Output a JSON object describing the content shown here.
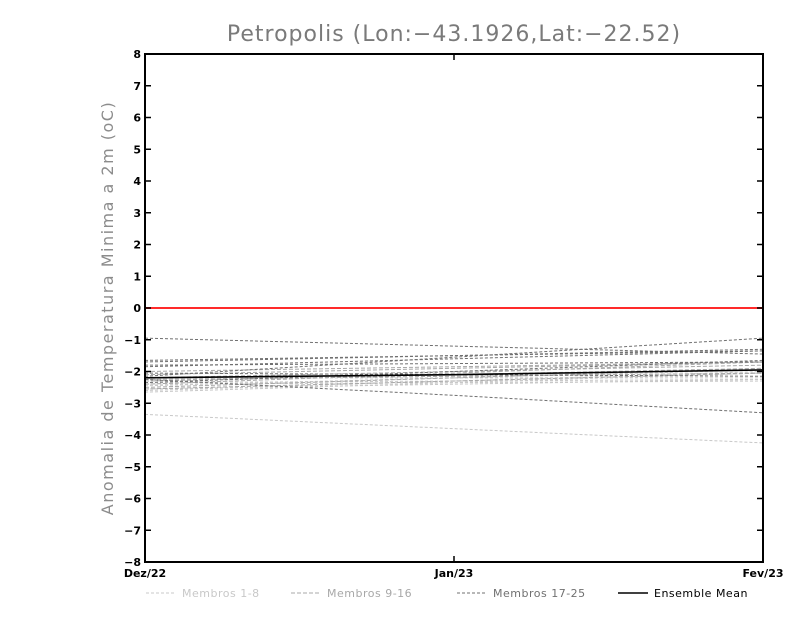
{
  "chart_data": {
    "type": "line",
    "title": "Petropolis (Lon:−43.1926,Lat:−22.52)",
    "ylabel": "Anomalia de Temperatura Minima a 2m (oC)",
    "xlabel": "",
    "categories": [
      "Dez/22",
      "Jan/23",
      "Fev/23"
    ],
    "ylim": [
      -8,
      8
    ],
    "yticks": [
      "8",
      "7",
      "6",
      "5",
      "4",
      "3",
      "2",
      "1",
      "0",
      "−1",
      "−2",
      "−3",
      "−4",
      "−5",
      "−6",
      "−7",
      "−8"
    ],
    "ytick_values": [
      8,
      7,
      6,
      5,
      4,
      3,
      2,
      1,
      0,
      -1,
      -2,
      -3,
      -4,
      -5,
      -6,
      -7,
      -8
    ],
    "reference_line": {
      "value": 0,
      "color": "#ff2a2a"
    },
    "groups": [
      {
        "name": "Membros 1-8",
        "color": "#c8c8c8",
        "dash": "3,2",
        "series": [
          {
            "values": [
              -3.35,
              -3.8,
              -4.25
            ]
          },
          {
            "values": [
              -2.55,
              -2.4,
              -2.25
            ]
          },
          {
            "values": [
              -2.35,
              -2.3,
              -2.25
            ]
          },
          {
            "values": [
              -2.6,
              -2.3,
              -2.0
            ]
          },
          {
            "values": [
              -2.45,
              -2.2,
              -1.95
            ]
          },
          {
            "values": [
              -2.65,
              -2.35,
              -2.05
            ]
          },
          {
            "values": [
              -2.4,
              -2.35,
              -2.3
            ]
          },
          {
            "values": [
              -2.2,
              -2.2,
              -2.2
            ]
          }
        ]
      },
      {
        "name": "Membros 9-16",
        "color": "#a8a8a8",
        "dash": "4,2",
        "series": [
          {
            "values": [
              -2.3,
              -2.1,
              -1.9
            ]
          },
          {
            "values": [
              -2.5,
              -2.2,
              -1.9
            ]
          },
          {
            "values": [
              -2.1,
              -1.9,
              -1.7
            ]
          },
          {
            "values": [
              -2.2,
              -2.0,
              -1.8
            ]
          },
          {
            "values": [
              -2.55,
              -2.3,
              -2.05
            ]
          },
          {
            "values": [
              -2.0,
              -1.85,
              -1.7
            ]
          },
          {
            "values": [
              -2.4,
              -2.05,
              -1.7
            ]
          },
          {
            "values": [
              -2.25,
              -2.15,
              -2.05
            ]
          }
        ]
      },
      {
        "name": "Membros 17-25",
        "color": "#707070",
        "dash": "3,2",
        "series": [
          {
            "values": [
              -0.95,
              -1.2,
              -1.45
            ]
          },
          {
            "values": [
              -1.65,
              -1.5,
              -1.35
            ]
          },
          {
            "values": [
              -1.7,
              -1.5,
              -1.3
            ]
          },
          {
            "values": [
              -2.25,
              -2.75,
              -3.3
            ]
          },
          {
            "values": [
              -1.85,
              -1.6,
              -1.35
            ]
          },
          {
            "values": [
              -2.15,
              -1.55,
              -0.95
            ]
          },
          {
            "values": [
              -1.8,
              -1.75,
              -1.7
            ]
          },
          {
            "values": [
              -2.35,
              -2.0,
              -1.65
            ]
          },
          {
            "values": [
              -2.05,
              -2.1,
              -2.15
            ]
          }
        ]
      },
      {
        "name": "Ensemble Mean",
        "color": "#000000",
        "dash": "",
        "series": [
          {
            "values": [
              -2.2,
              -2.1,
              -1.95
            ]
          }
        ]
      }
    ]
  }
}
